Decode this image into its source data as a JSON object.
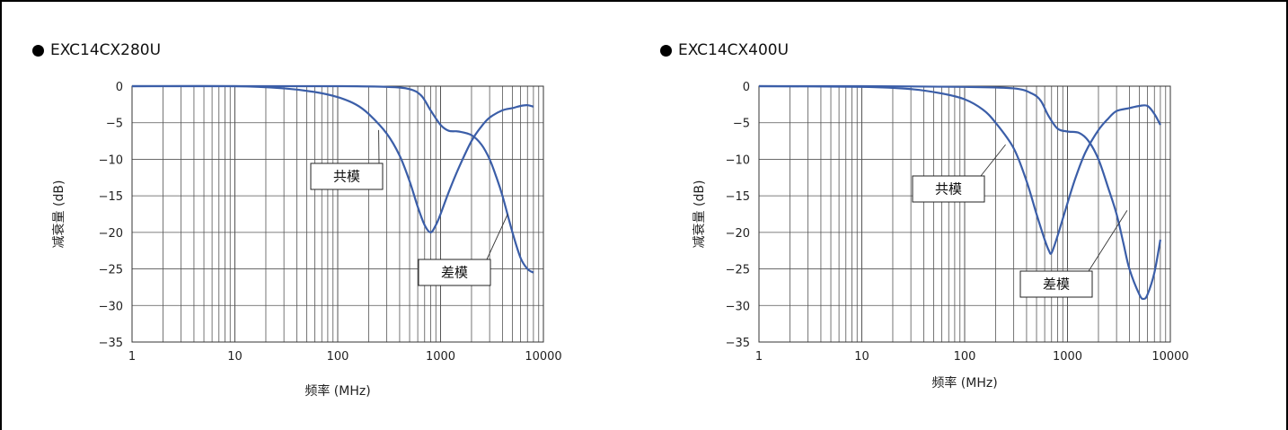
{
  "chart_data": [
    {
      "type": "line",
      "title": "EXC14CX280U",
      "xlabel": "频率 (MHz)",
      "ylabel": "减衰量 (dB)",
      "x_scale": "log",
      "xlim": [
        1,
        10000
      ],
      "ylim": [
        -35,
        0
      ],
      "x_ticks": [
        "1",
        "10",
        "100",
        "1000",
        "10000"
      ],
      "y_ticks": [
        "0",
        "−5",
        "−10",
        "−15",
        "−20",
        "−25",
        "−30",
        "−35"
      ],
      "grid": true,
      "series": [
        {
          "name": "共模",
          "points": [
            [
              1,
              0
            ],
            [
              10,
              0
            ],
            [
              30,
              -0.3
            ],
            [
              60,
              -0.8
            ],
            [
              100,
              -1.5
            ],
            [
              150,
              -2.5
            ],
            [
              200,
              -3.8
            ],
            [
              300,
              -6.5
            ],
            [
              400,
              -9.5
            ],
            [
              500,
              -13
            ],
            [
              600,
              -16.5
            ],
            [
              700,
              -19
            ],
            [
              800,
              -20
            ],
            [
              900,
              -19
            ],
            [
              1000,
              -17.5
            ],
            [
              1200,
              -14.5
            ],
            [
              1500,
              -11.2
            ],
            [
              2000,
              -7.5
            ],
            [
              2500,
              -5.5
            ],
            [
              3000,
              -4.3
            ],
            [
              4000,
              -3.3
            ],
            [
              5000,
              -3.0
            ],
            [
              6000,
              -2.7
            ],
            [
              7000,
              -2.6
            ],
            [
              8000,
              -2.8
            ]
          ]
        },
        {
          "name": "差模",
          "points": [
            [
              1,
              0
            ],
            [
              10,
              0
            ],
            [
              100,
              0
            ],
            [
              300,
              -0.1
            ],
            [
              500,
              -0.4
            ],
            [
              650,
              -1.3
            ],
            [
              800,
              -3.3
            ],
            [
              1000,
              -5.3
            ],
            [
              1200,
              -6.1
            ],
            [
              1500,
              -6.2
            ],
            [
              2000,
              -6.7
            ],
            [
              2500,
              -8
            ],
            [
              3000,
              -10
            ],
            [
              3500,
              -12.5
            ],
            [
              4000,
              -15
            ],
            [
              5000,
              -20
            ],
            [
              6000,
              -23.5
            ],
            [
              7000,
              -25
            ],
            [
              8000,
              -25.5
            ]
          ]
        }
      ],
      "annotations": [
        {
          "text": "共模",
          "series": "共模",
          "x": 250,
          "y": -6
        },
        {
          "text": "差模",
          "series": "差模",
          "x": 4500,
          "y": -17.5
        }
      ]
    },
    {
      "type": "line",
      "title": "EXC14CX400U",
      "xlabel": "频率 (MHz)",
      "ylabel": "减衰量 (dB)",
      "x_scale": "log",
      "xlim": [
        1,
        10000
      ],
      "ylim": [
        -35,
        0
      ],
      "x_ticks": [
        "1",
        "10",
        "100",
        "1000",
        "10000"
      ],
      "y_ticks": [
        "0",
        "−5",
        "−10",
        "−15",
        "−20",
        "−25",
        "−30",
        "−35"
      ],
      "grid": true,
      "series": [
        {
          "name": "共模",
          "points": [
            [
              1,
              0
            ],
            [
              10,
              -0.1
            ],
            [
              30,
              -0.4
            ],
            [
              60,
              -1.0
            ],
            [
              100,
              -1.8
            ],
            [
              150,
              -3.2
            ],
            [
              200,
              -5
            ],
            [
              300,
              -8.5
            ],
            [
              400,
              -13
            ],
            [
              500,
              -17.5
            ],
            [
              600,
              -21
            ],
            [
              660,
              -22.5
            ],
            [
              700,
              -22.8
            ],
            [
              800,
              -20.5
            ],
            [
              1000,
              -16
            ],
            [
              1200,
              -12.5
            ],
            [
              1500,
              -9
            ],
            [
              2000,
              -6
            ],
            [
              2500,
              -4.4
            ],
            [
              3000,
              -3.4
            ],
            [
              4000,
              -3.0
            ],
            [
              5000,
              -2.7
            ],
            [
              6000,
              -2.7
            ],
            [
              7000,
              -3.8
            ],
            [
              8000,
              -5.3
            ]
          ]
        },
        {
          "name": "差模",
          "points": [
            [
              1,
              0
            ],
            [
              10,
              0
            ],
            [
              100,
              -0.1
            ],
            [
              300,
              -0.3
            ],
            [
              450,
              -1.0
            ],
            [
              550,
              -2.0
            ],
            [
              650,
              -4
            ],
            [
              800,
              -5.8
            ],
            [
              1000,
              -6.2
            ],
            [
              1300,
              -6.4
            ],
            [
              1600,
              -7.5
            ],
            [
              2000,
              -10
            ],
            [
              2500,
              -14
            ],
            [
              3000,
              -17.5
            ],
            [
              3500,
              -21.5
            ],
            [
              4000,
              -25
            ],
            [
              5000,
              -28.5
            ],
            [
              5500,
              -29.1
            ],
            [
              6000,
              -28.5
            ],
            [
              7000,
              -25.5
            ],
            [
              8000,
              -21
            ]
          ]
        }
      ],
      "annotations": [
        {
          "text": "共模",
          "series": "共模",
          "x": 250,
          "y": -8
        },
        {
          "text": "差模",
          "series": "差模",
          "x": 3800,
          "y": -17
        }
      ]
    }
  ]
}
